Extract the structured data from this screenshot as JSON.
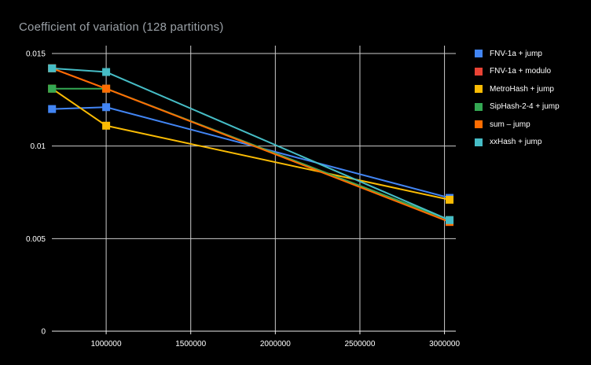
{
  "header": {
    "title": "Coefficient of variation (128 partitions)"
  },
  "colors": {
    "background": "#000000",
    "title_text": "#9aa0a6",
    "axis_text": "#ffffff",
    "gridline": "#cccccc",
    "axis_line": "#ededed",
    "legend_text": "#ffffff"
  },
  "chart_data": {
    "type": "line",
    "title": "Coefficient of variation (128 partitions)",
    "xlabel": "",
    "ylabel": "",
    "x": [
      680000,
      1000000,
      3030000
    ],
    "series": [
      {
        "name": "FNV-1a + jump",
        "color": "#4285F4",
        "values": [
          0.012,
          0.0121,
          0.0072
        ]
      },
      {
        "name": "FNV-1a + modulo",
        "color": "#EA4335",
        "values": [
          0.0142,
          0.0131,
          0.006
        ]
      },
      {
        "name": "MetroHash + jump",
        "color": "#FBBC04",
        "values": [
          0.0131,
          0.0111,
          0.0071
        ]
      },
      {
        "name": "SipHash-2-4 + jump",
        "color": "#34A853",
        "values": [
          0.0131,
          0.0131,
          0.006
        ]
      },
      {
        "name": "sum – jump",
        "color": "#FF6D01",
        "values": [
          0.0142,
          0.0131,
          0.0059
        ]
      },
      {
        "name": "xxHash + jump",
        "color": "#46BDC6",
        "values": [
          0.0142,
          0.014,
          0.006
        ]
      }
    ],
    "x_ticks": [
      1000000,
      1500000,
      2000000,
      2500000,
      3000000
    ],
    "y_ticks": [
      0,
      0.005,
      0.01,
      0.015
    ],
    "xlim": [
      679000,
      3067000
    ],
    "ylim": [
      0,
      0.015
    ],
    "grid": true,
    "legend_position": "right",
    "marker": "square"
  }
}
